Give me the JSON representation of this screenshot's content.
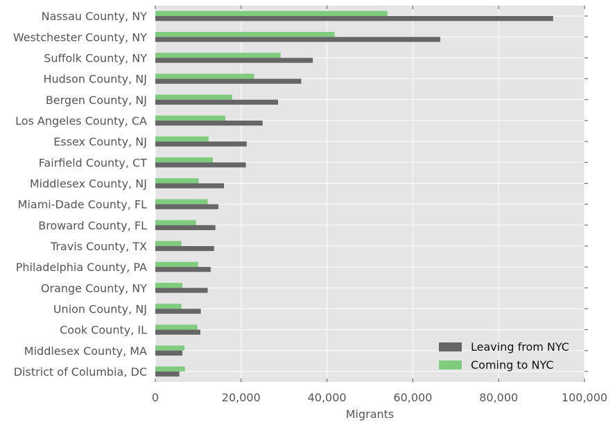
{
  "chart_data": {
    "type": "bar",
    "orientation": "horizontal",
    "categories": [
      "Nassau County, NY",
      "Westchester County, NY",
      "Suffolk County, NY",
      "Hudson County, NJ",
      "Bergen County, NJ",
      "Los Angeles County, CA",
      "Essex County, NJ",
      "Fairfield County, CT",
      "Middlesex County, NJ",
      "Miami-Dade County, FL",
      "Broward County, FL",
      "Travis County, TX",
      "Philadelphia County, PA",
      "Orange County, NY",
      "Union County, NJ",
      "Cook County, IL",
      "Middlesex County, MA",
      "District of Columbia, DC"
    ],
    "series": [
      {
        "name": "Leaving from NYC",
        "color": "#666666",
        "values": [
          92700,
          66400,
          36700,
          34000,
          28600,
          25000,
          21300,
          21100,
          16000,
          14700,
          14000,
          13700,
          12900,
          12200,
          10600,
          10500,
          6300,
          5600
        ]
      },
      {
        "name": "Coming to NYC",
        "color": "#7fcc7f",
        "values": [
          54100,
          41800,
          29200,
          23000,
          17900,
          16300,
          12400,
          13400,
          10100,
          12200,
          9500,
          6100,
          10000,
          6300,
          6100,
          9800,
          6800,
          6900
        ]
      }
    ],
    "xlabel": "Migrants",
    "ylabel": "",
    "xlim": [
      0,
      100000
    ],
    "x_ticks": [
      "0",
      "20,000",
      "40,000",
      "60,000",
      "80,000",
      "100,000"
    ],
    "grid": true,
    "legend_position": "bottom-right",
    "plot_background": "#e5e5e5",
    "grid_color": "#ffffff"
  }
}
